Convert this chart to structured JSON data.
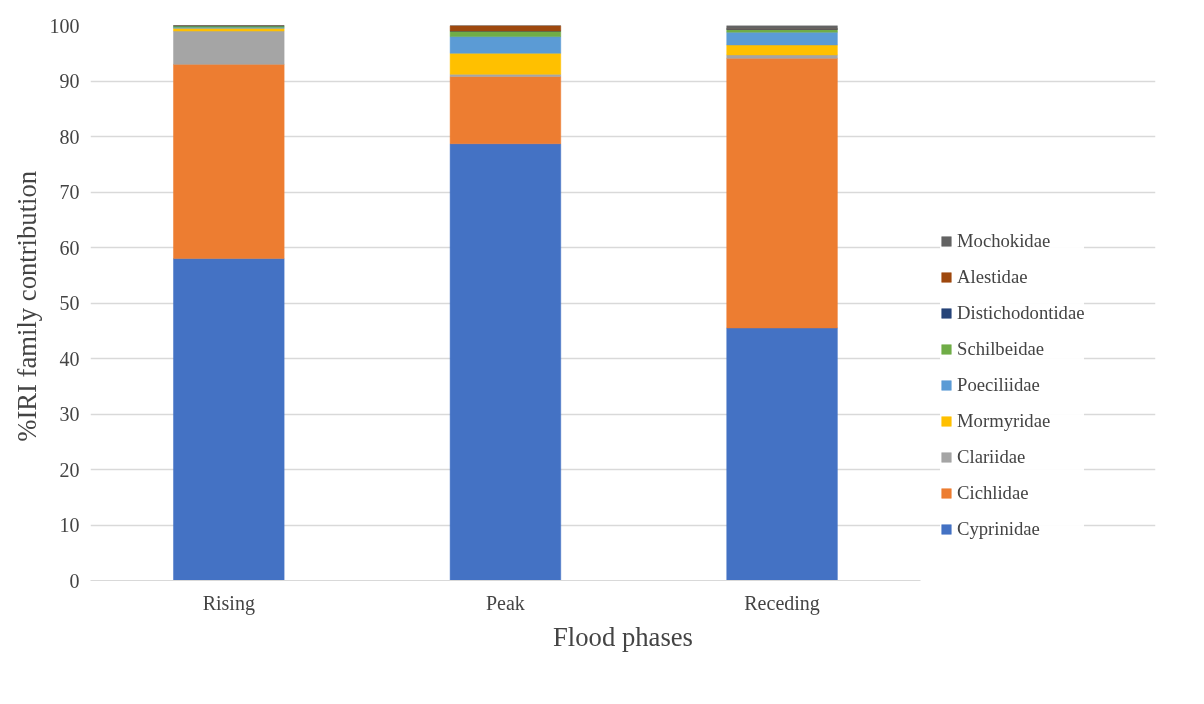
{
  "chart_data": {
    "type": "bar",
    "stacked": true,
    "xlabel": "Flood phases",
    "ylabel": "%IRI  family contribution",
    "categories": [
      "Rising",
      "Peak",
      "Receding"
    ],
    "series": [
      {
        "name": "Cyprinidae",
        "color": "#4472c4",
        "values": [
          58.0,
          78.7,
          45.5
        ]
      },
      {
        "name": "Cichlidae",
        "color": "#ed7d31",
        "values": [
          35.0,
          12.1,
          48.6
        ]
      },
      {
        "name": "Clariidae",
        "color": "#a5a5a5",
        "values": [
          6.0,
          0.4,
          0.6
        ]
      },
      {
        "name": "Mormyridae",
        "color": "#ffc000",
        "values": [
          0.5,
          3.8,
          1.8
        ]
      },
      {
        "name": "Poeciliidae",
        "color": "#5b9bd5",
        "values": [
          0.2,
          3.0,
          2.3
        ]
      },
      {
        "name": "Schilbeidae",
        "color": "#70ad47",
        "values": [
          0.2,
          1.0,
          0.5
        ]
      },
      {
        "name": "Distichodontidae",
        "color": "#264478",
        "values": [
          0.1,
          0,
          0.1
        ]
      },
      {
        "name": "Alestidae",
        "color": "#9e480e",
        "values": [
          0,
          1.0,
          0
        ]
      },
      {
        "name": "Mochokidae",
        "color": "#636363",
        "values": [
          0,
          0,
          0.6
        ]
      }
    ],
    "ylim": [
      0,
      100
    ],
    "yticks": [
      0,
      10,
      20,
      30,
      40,
      50,
      60,
      70,
      80,
      90,
      100
    ],
    "grid": "y",
    "legend": "right"
  }
}
